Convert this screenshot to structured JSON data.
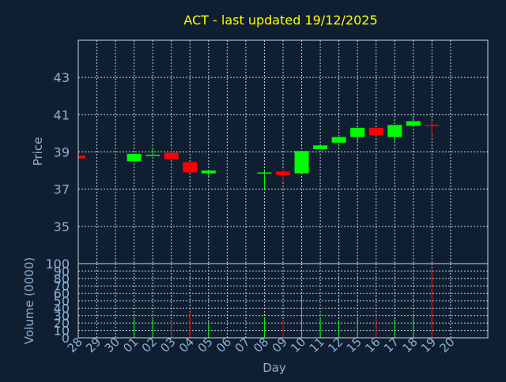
{
  "chart_data": {
    "type": "candlestick",
    "title": "ACT - last updated 19/12/2025",
    "ylabel": "Price",
    "volume_ylabel": "Volume (0000)",
    "xlabel": "Day",
    "grid": true,
    "colors": {
      "background": "#0f1f31",
      "up": "#00ff00",
      "down": "#ff0000",
      "title": "#ffff00",
      "axis_text": "#8fb0d2",
      "frame": "#c8d4e0",
      "grid": "#c8d4e0"
    },
    "price_ylim": [
      33,
      45
    ],
    "price_yticks": [
      35,
      37,
      39,
      41,
      43
    ],
    "volume_ylim": [
      0,
      100
    ],
    "volume_yticks": [
      0,
      10,
      20,
      30,
      40,
      50,
      60,
      70,
      80,
      90,
      100
    ],
    "x_ticks": [
      "28",
      "29",
      "30",
      "01",
      "02",
      "03",
      "04",
      "05",
      "06",
      "07",
      "08",
      "09",
      "10",
      "11",
      "12",
      "15",
      "16",
      "17",
      "18",
      "19",
      "20"
    ],
    "candles": [
      {
        "day": "28",
        "open": 38.8,
        "close": 38.65,
        "high": 38.8,
        "low": 38.65,
        "volume": 0
      },
      {
        "day": "01",
        "open": 38.5,
        "close": 38.9,
        "high": 38.9,
        "low": 38.5,
        "volume": 28
      },
      {
        "day": "02",
        "open": 38.8,
        "close": 38.85,
        "high": 39.2,
        "low": 38.8,
        "volume": 27
      },
      {
        "day": "03",
        "open": 38.95,
        "close": 38.6,
        "high": 39.2,
        "low": 38.6,
        "volume": 23
      },
      {
        "day": "04",
        "open": 38.45,
        "close": 37.9,
        "high": 38.45,
        "low": 37.9,
        "volume": 35
      },
      {
        "day": "05",
        "open": 37.85,
        "close": 38.0,
        "high": 38.0,
        "low": 37.7,
        "volume": 20
      },
      {
        "day": "08",
        "open": 37.85,
        "close": 37.9,
        "high": 38.0,
        "low": 37.0,
        "volume": 27
      },
      {
        "day": "09",
        "open": 37.95,
        "close": 37.75,
        "high": 38.1,
        "low": 37.4,
        "volume": 23
      },
      {
        "day": "10",
        "open": 37.85,
        "close": 39.05,
        "high": 39.05,
        "low": 37.85,
        "volume": 55
      },
      {
        "day": "11",
        "open": 39.15,
        "close": 39.35,
        "high": 39.45,
        "low": 39.15,
        "volume": 28
      },
      {
        "day": "12",
        "open": 39.5,
        "close": 39.8,
        "high": 39.8,
        "low": 39.3,
        "volume": 23
      },
      {
        "day": "15",
        "open": 39.8,
        "close": 40.3,
        "high": 40.3,
        "low": 39.55,
        "volume": 28
      },
      {
        "day": "16",
        "open": 40.3,
        "close": 39.9,
        "high": 40.3,
        "low": 39.9,
        "volume": 28
      },
      {
        "day": "17",
        "open": 39.8,
        "close": 40.45,
        "high": 40.45,
        "low": 39.55,
        "volume": 25
      },
      {
        "day": "18",
        "open": 40.4,
        "close": 40.65,
        "high": 40.85,
        "low": 40.4,
        "volume": 30
      },
      {
        "day": "19",
        "open": 40.45,
        "close": 40.4,
        "high": 40.6,
        "low": 39.9,
        "volume": 92
      }
    ]
  }
}
